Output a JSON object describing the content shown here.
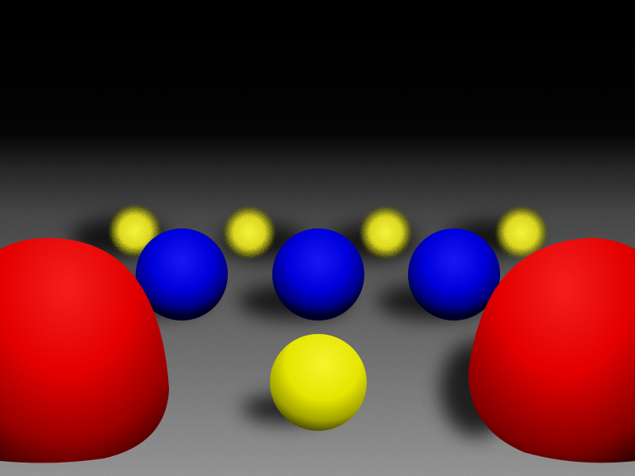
{
  "scene": {
    "background_top_color": "#000000",
    "floor_far_color": "#4a4a4a",
    "floor_near_color": "#9a9a9a",
    "objects": [
      {
        "name": "large-red-sphere-left",
        "color": "#ff0000",
        "shade": "#5a0000"
      },
      {
        "name": "large-red-sphere-right",
        "color": "#ff0000",
        "shade": "#5a0000"
      },
      {
        "name": "blue-sphere-left",
        "color": "#0000ff",
        "shade": "#000033"
      },
      {
        "name": "blue-sphere-center",
        "color": "#0000ff",
        "shade": "#000033"
      },
      {
        "name": "blue-sphere-right",
        "color": "#0000ff",
        "shade": "#000033"
      },
      {
        "name": "blurred-yellow-sphere-1",
        "color": "#ffff33"
      },
      {
        "name": "blurred-yellow-sphere-2",
        "color": "#ffff33"
      },
      {
        "name": "blurred-yellow-sphere-3",
        "color": "#ffff33"
      },
      {
        "name": "blurred-yellow-sphere-4",
        "color": "#ffff33"
      },
      {
        "name": "yellow-sphere-front",
        "color": "#ffff00",
        "shade": "#6a6a00"
      }
    ]
  }
}
